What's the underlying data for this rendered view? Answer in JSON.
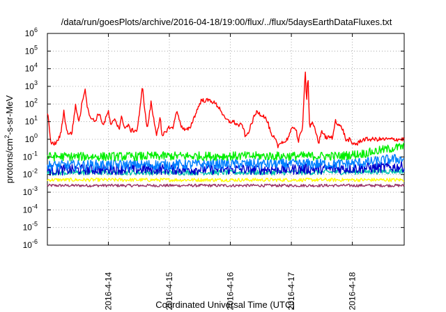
{
  "chart_data": {
    "type": "line",
    "title": "/data/run/goesPlots/archive/2016-04-18/19:00/flux/../flux/5daysEarthDataFluxes.txt",
    "xlabel": "Coordinated Universal Time (UTC)",
    "ylabel_prefix": "protons/cm",
    "ylabel_sup": "2",
    "ylabel_suffix": "-s-sr-MeV",
    "yscale": "log",
    "ylim_exp": [
      -6,
      6
    ],
    "y_tick_exponents": [
      -6,
      -5,
      -4,
      -3,
      -2,
      -1,
      0,
      1,
      2,
      3,
      4,
      5,
      6
    ],
    "y_tick_base": "10",
    "xlim_days": [
      13.0,
      18.85
    ],
    "x_tick_values": [
      14,
      15,
      16,
      17,
      18
    ],
    "x_tick_labels": [
      "2016-4-14",
      "2016-4-15",
      "2016-4-16",
      "2016-4-17",
      "2016-4-18"
    ],
    "grid": true,
    "series": [
      {
        "color": "#ff0000",
        "noise": 0.12,
        "log10_values": [
          [
            13.0,
            1.5
          ],
          [
            13.03,
            0.8
          ],
          [
            13.06,
            -0.3
          ],
          [
            13.15,
            -0.2
          ],
          [
            13.22,
            0.3
          ],
          [
            13.27,
            1.6
          ],
          [
            13.32,
            0.4
          ],
          [
            13.4,
            0.3
          ],
          [
            13.46,
            1.9
          ],
          [
            13.52,
            1.0
          ],
          [
            13.58,
            2.3
          ],
          [
            13.62,
            2.9
          ],
          [
            13.66,
            1.7
          ],
          [
            13.72,
            1.2
          ],
          [
            13.78,
            1.0
          ],
          [
            13.84,
            1.5
          ],
          [
            13.92,
            0.8
          ],
          [
            14.0,
            1.6
          ],
          [
            14.04,
            0.7
          ],
          [
            14.1,
            1.2
          ],
          [
            14.18,
            0.6
          ],
          [
            14.22,
            1.3
          ],
          [
            14.27,
            0.6
          ],
          [
            14.32,
            0.8
          ],
          [
            14.37,
            0.5
          ],
          [
            14.42,
            0.5
          ],
          [
            14.47,
            0.5
          ],
          [
            14.53,
            2.0
          ],
          [
            14.56,
            3.1
          ],
          [
            14.6,
            1.5
          ],
          [
            14.64,
            0.6
          ],
          [
            14.7,
            2.1
          ],
          [
            14.74,
            1.2
          ],
          [
            14.79,
            0.3
          ],
          [
            14.85,
            1.2
          ],
          [
            14.88,
            0.1
          ],
          [
            14.93,
            0.4
          ],
          [
            15.0,
            0.7
          ],
          [
            15.06,
            0.6
          ],
          [
            15.11,
            1.6
          ],
          [
            15.16,
            1.2
          ],
          [
            15.2,
            0.7
          ],
          [
            15.26,
            0.5
          ],
          [
            15.33,
            0.6
          ],
          [
            15.4,
            1.2
          ],
          [
            15.46,
            1.7
          ],
          [
            15.52,
            2.2
          ],
          [
            15.6,
            2.2
          ],
          [
            15.68,
            2.2
          ],
          [
            15.76,
            2.0
          ],
          [
            15.84,
            1.7
          ],
          [
            15.9,
            1.2
          ],
          [
            15.98,
            1.0
          ],
          [
            16.05,
            1.0
          ],
          [
            16.12,
            0.8
          ],
          [
            16.2,
            0.8
          ],
          [
            16.25,
            0.1
          ],
          [
            16.32,
            0.6
          ],
          [
            16.38,
            1.2
          ],
          [
            16.44,
            1.6
          ],
          [
            16.5,
            1.4
          ],
          [
            16.56,
            1.3
          ],
          [
            16.62,
            0.9
          ],
          [
            16.68,
            0.1
          ],
          [
            16.72,
            0.1
          ],
          [
            16.78,
            -0.4
          ],
          [
            16.84,
            -0.1
          ],
          [
            16.88,
            -0.2
          ],
          [
            16.93,
            0.0
          ],
          [
            17.0,
            0.5
          ],
          [
            17.04,
            0.7
          ],
          [
            17.08,
            0.6
          ],
          [
            17.11,
            -0.2
          ],
          [
            17.15,
            0.3
          ],
          [
            17.18,
            0.5
          ],
          [
            17.2,
            2.0
          ],
          [
            17.23,
            3.9
          ],
          [
            17.25,
            2.0
          ],
          [
            17.27,
            3.8
          ],
          [
            17.3,
            0.7
          ],
          [
            17.35,
            0.9
          ],
          [
            17.4,
            0.4
          ],
          [
            17.45,
            -0.2
          ],
          [
            17.5,
            0.5
          ],
          [
            17.56,
            0.1
          ],
          [
            17.62,
            0.1
          ],
          [
            17.68,
            0.1
          ],
          [
            17.72,
            1.1
          ],
          [
            17.78,
            0.8
          ],
          [
            17.84,
            0.6
          ],
          [
            17.9,
            -0.1
          ],
          [
            17.95,
            0.0
          ],
          [
            18.0,
            -0.3
          ],
          [
            18.03,
            -0.2
          ],
          [
            18.08,
            -0.3
          ],
          [
            18.12,
            -0.1
          ],
          [
            18.2,
            0.0
          ],
          [
            18.28,
            0.0
          ],
          [
            18.36,
            0.0
          ],
          [
            18.44,
            0.0
          ],
          [
            18.52,
            0.0
          ],
          [
            18.6,
            0.0
          ],
          [
            18.7,
            0.0
          ],
          [
            18.78,
            0.0
          ],
          [
            18.85,
            0.0
          ]
        ]
      },
      {
        "color": "#00ee00",
        "noise": 0.25,
        "log10_values": [
          [
            13.0,
            -0.98
          ],
          [
            14.0,
            -0.98
          ],
          [
            15.0,
            -0.95
          ],
          [
            16.0,
            -0.95
          ],
          [
            17.0,
            -0.95
          ],
          [
            17.8,
            -0.95
          ],
          [
            18.2,
            -0.8
          ],
          [
            18.5,
            -0.6
          ],
          [
            18.85,
            -0.4
          ]
        ]
      },
      {
        "color": "#0080ff",
        "noise": 0.3,
        "log10_values": [
          [
            13.0,
            -1.5
          ],
          [
            14.0,
            -1.45
          ],
          [
            15.0,
            -1.45
          ],
          [
            16.0,
            -1.4
          ],
          [
            17.0,
            -1.4
          ],
          [
            17.8,
            -1.4
          ],
          [
            18.3,
            -1.3
          ],
          [
            18.6,
            -1.15
          ],
          [
            18.85,
            -1.1
          ]
        ]
      },
      {
        "color": "#0000cc",
        "noise": 0.3,
        "log10_values": [
          [
            13.0,
            -1.75
          ],
          [
            14.0,
            -1.7
          ],
          [
            15.0,
            -1.7
          ],
          [
            16.0,
            -1.7
          ],
          [
            17.0,
            -1.7
          ],
          [
            18.0,
            -1.65
          ],
          [
            18.5,
            -1.6
          ],
          [
            18.85,
            -1.55
          ]
        ]
      },
      {
        "color": "#00c0b0",
        "noise": 0.15,
        "log10_values": [
          [
            13.0,
            -1.9
          ],
          [
            14.0,
            -1.88
          ],
          [
            15.0,
            -1.88
          ],
          [
            16.0,
            -1.88
          ],
          [
            17.0,
            -1.88
          ],
          [
            18.0,
            -1.85
          ],
          [
            18.85,
            -1.8
          ]
        ]
      },
      {
        "color": "#ffff00",
        "noise": 0.1,
        "log10_values": [
          [
            13.0,
            -2.3
          ],
          [
            14.0,
            -2.3
          ],
          [
            15.0,
            -2.3
          ],
          [
            16.0,
            -2.3
          ],
          [
            17.0,
            -2.3
          ],
          [
            18.0,
            -2.3
          ],
          [
            18.85,
            -2.3
          ]
        ]
      },
      {
        "color": "#993366",
        "noise": 0.08,
        "log10_values": [
          [
            13.0,
            -2.62
          ],
          [
            14.0,
            -2.62
          ],
          [
            15.0,
            -2.62
          ],
          [
            16.0,
            -2.62
          ],
          [
            17.0,
            -2.62
          ],
          [
            18.0,
            -2.62
          ],
          [
            18.85,
            -2.62
          ]
        ]
      }
    ]
  }
}
